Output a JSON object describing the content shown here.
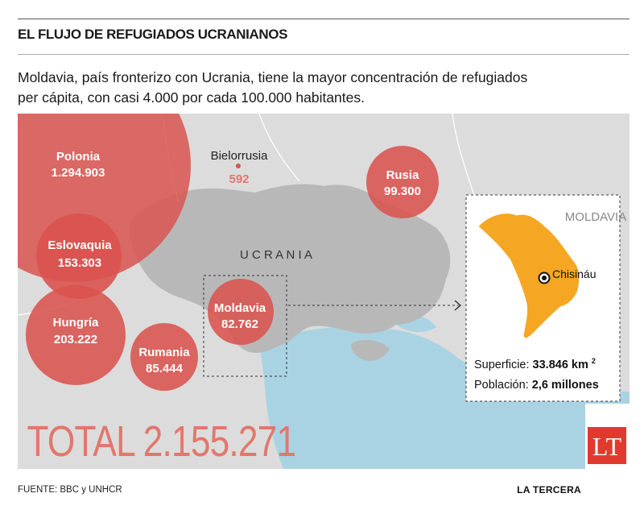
{
  "header": {
    "title": "EL FLUJO DE REFUGIADOS UCRANIANOS",
    "intro_line1": "Moldavia, país fronterizo con Ucrania, tiene la mayor concentración de refugiados",
    "intro_line2": "per cápita, con casi 4.000 por cada 100.000 habitantes."
  },
  "map": {
    "country_label": "U C R A N I A",
    "belarus": {
      "name": "Bielorrusia",
      "value": "592"
    },
    "bubbles": [
      {
        "id": "polonia",
        "name": "Polonia",
        "value": "1.294.903"
      },
      {
        "id": "eslovaquia",
        "name": "Eslovaquia",
        "value": "153.303"
      },
      {
        "id": "hungria",
        "name": "Hungría",
        "value": "203.222"
      },
      {
        "id": "rumania",
        "name": "Rumania",
        "value": "85.444"
      },
      {
        "id": "moldavia",
        "name": "Moldavia",
        "value": "82.762"
      },
      {
        "id": "rusia",
        "name": "Rusia",
        "value": "99.300"
      }
    ],
    "total_label": "TOTAL 2.155.271",
    "inset": {
      "title": "MOLDAVIA",
      "capital": "Chisináu",
      "area_label": "Superficie:",
      "area_value": "33.846 km",
      "area_sup": "2",
      "pop_label": "Población:",
      "pop_value": "2,6 millones"
    },
    "logo": "LT",
    "colors": {
      "bubble": "#d9534f",
      "land": "#dcdcdc",
      "ukraine": "#b8b8b8",
      "sea": "#a9d3e3",
      "moldova": "#f5a623",
      "total": "#e2776c"
    }
  },
  "footer": {
    "source": "FUENTE: BBC y UNHCR",
    "brand": "LA TERCERA"
  }
}
